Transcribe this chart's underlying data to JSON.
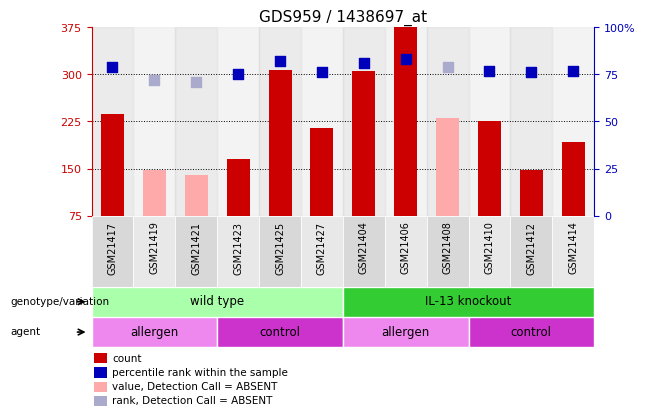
{
  "title": "GDS959 / 1438697_at",
  "samples": [
    "GSM21417",
    "GSM21419",
    "GSM21421",
    "GSM21423",
    "GSM21425",
    "GSM21427",
    "GSM21404",
    "GSM21406",
    "GSM21408",
    "GSM21410",
    "GSM21412",
    "GSM21414"
  ],
  "count_values": [
    237,
    null,
    null,
    165,
    307,
    215,
    305,
    375,
    null,
    225,
    148,
    193
  ],
  "count_absent": [
    null,
    148,
    140,
    null,
    null,
    null,
    null,
    null,
    230,
    null,
    null,
    null
  ],
  "rank_present": [
    79,
    null,
    null,
    75,
    82,
    76,
    81,
    83,
    null,
    77,
    76,
    77
  ],
  "rank_absent": [
    null,
    72,
    71,
    null,
    null,
    null,
    null,
    null,
    79,
    null,
    null,
    null
  ],
  "ylim_left": [
    75,
    375
  ],
  "ylim_right": [
    0,
    100
  ],
  "yticks_left": [
    75,
    150,
    225,
    300,
    375
  ],
  "yticks_right": [
    0,
    25,
    50,
    75,
    100
  ],
  "ytick_labels_left": [
    "75",
    "150",
    "225",
    "300",
    "375"
  ],
  "ytick_labels_right": [
    "0",
    "25",
    "50",
    "75",
    "100%"
  ],
  "grid_values": [
    150,
    225,
    300
  ],
  "bar_color_present": "#cc0000",
  "bar_color_absent": "#ffaaaa",
  "dot_color_present": "#0000bb",
  "dot_color_absent": "#aaaacc",
  "genotype_groups": [
    {
      "label": "wild type",
      "start": 0,
      "end": 6,
      "color": "#aaffaa"
    },
    {
      "label": "IL-13 knockout",
      "start": 6,
      "end": 12,
      "color": "#33cc33"
    }
  ],
  "agent_groups": [
    {
      "label": "allergen",
      "start": 0,
      "end": 3,
      "color": "#ee88ee"
    },
    {
      "label": "control",
      "start": 3,
      "end": 6,
      "color": "#cc33cc"
    },
    {
      "label": "allergen",
      "start": 6,
      "end": 9,
      "color": "#ee88ee"
    },
    {
      "label": "control",
      "start": 9,
      "end": 12,
      "color": "#cc33cc"
    }
  ],
  "legend_items": [
    {
      "label": "count",
      "color": "#cc0000"
    },
    {
      "label": "percentile rank within the sample",
      "color": "#0000bb"
    },
    {
      "label": "value, Detection Call = ABSENT",
      "color": "#ffaaaa"
    },
    {
      "label": "rank, Detection Call = ABSENT",
      "color": "#aaaacc"
    }
  ],
  "tick_label_color_left": "#cc0000",
  "tick_label_color_right": "#0000bb",
  "row_label_genotype": "genotype/variation",
  "row_label_agent": "agent",
  "bar_width": 0.55,
  "dot_size": 55,
  "col_bg_even": "#d8d8d8",
  "col_bg_odd": "#e8e8e8"
}
